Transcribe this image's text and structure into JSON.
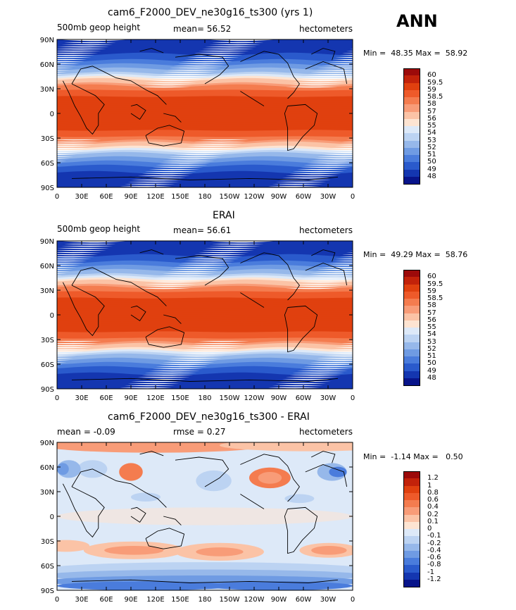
{
  "season": "ANN",
  "lat_labels": [
    "90N",
    "60N",
    "30N",
    "0",
    "30S",
    "60S",
    "90S"
  ],
  "lon_labels": [
    "0",
    "30E",
    "60E",
    "90E",
    "120E",
    "150E",
    "180",
    "150W",
    "120W",
    "90W",
    "60W",
    "30W",
    "0"
  ],
  "panels": [
    {
      "title": "cam6_F2000_DEV_ne30g16_ts300 (yrs 1)",
      "left_text": "500mb geop height",
      "center_text": "mean=   56.52",
      "right_text": "hectometers",
      "min_label": "Min =",
      "min_value": "48.35",
      "max_label": "Max =",
      "max_value": "58.92",
      "levels": [
        "60",
        "59.5",
        "59",
        "58.5",
        "58",
        "57",
        "56",
        "55",
        "54",
        "53",
        "52",
        "51",
        "50",
        "49",
        "48"
      ],
      "colors": [
        "#9c0a0a",
        "#c2220a",
        "#e0400f",
        "#ee5a2a",
        "#f47c4f",
        "#f89c78",
        "#fbc3a6",
        "#fde4d2",
        "#dde9f8",
        "#bcd3f2",
        "#96b8ea",
        "#6f9be3",
        "#4a7cdc",
        "#2a5acc",
        "#1436b0",
        "#08148a"
      ]
    },
    {
      "title": "ERAI",
      "left_text": "500mb geop height",
      "center_text": "mean=   56.61",
      "right_text": "hectometers",
      "min_label": "Min =",
      "min_value": "49.29",
      "max_label": "Max =",
      "max_value": "58.76",
      "levels": [
        "60",
        "59.5",
        "59",
        "58.5",
        "58",
        "57",
        "56",
        "55",
        "54",
        "53",
        "52",
        "51",
        "50",
        "49",
        "48"
      ],
      "colors": [
        "#9c0a0a",
        "#c2220a",
        "#e0400f",
        "#ee5a2a",
        "#f47c4f",
        "#f89c78",
        "#fbc3a6",
        "#fde4d2",
        "#dde9f8",
        "#bcd3f2",
        "#96b8ea",
        "#6f9be3",
        "#4a7cdc",
        "#2a5acc",
        "#1436b0",
        "#08148a"
      ]
    },
    {
      "title": "cam6_F2000_DEV_ne30g16_ts300 - ERAI",
      "left_text": "mean =   -0.09",
      "center_text": "rmse =    0.27",
      "right_text": "hectometers",
      "min_label": "Min =",
      "min_value": "-1.14",
      "max_label": "Max =",
      "max_value": "0.50",
      "levels": [
        "1.2",
        "1",
        "0.8",
        "0.6",
        "0.4",
        "0.2",
        "0.1",
        "0",
        "-0.1",
        "-0.2",
        "-0.4",
        "-0.6",
        "-0.8",
        "-1",
        "-1.2"
      ],
      "colors": [
        "#9c0a0a",
        "#c2220a",
        "#e0400f",
        "#ee5a2a",
        "#f47c4f",
        "#f89c78",
        "#fbc3a6",
        "#fde4d2",
        "#dde9f8",
        "#bcd3f2",
        "#96b8ea",
        "#6f9be3",
        "#4a7cdc",
        "#2a5acc",
        "#1436b0",
        "#08148a"
      ]
    }
  ]
}
